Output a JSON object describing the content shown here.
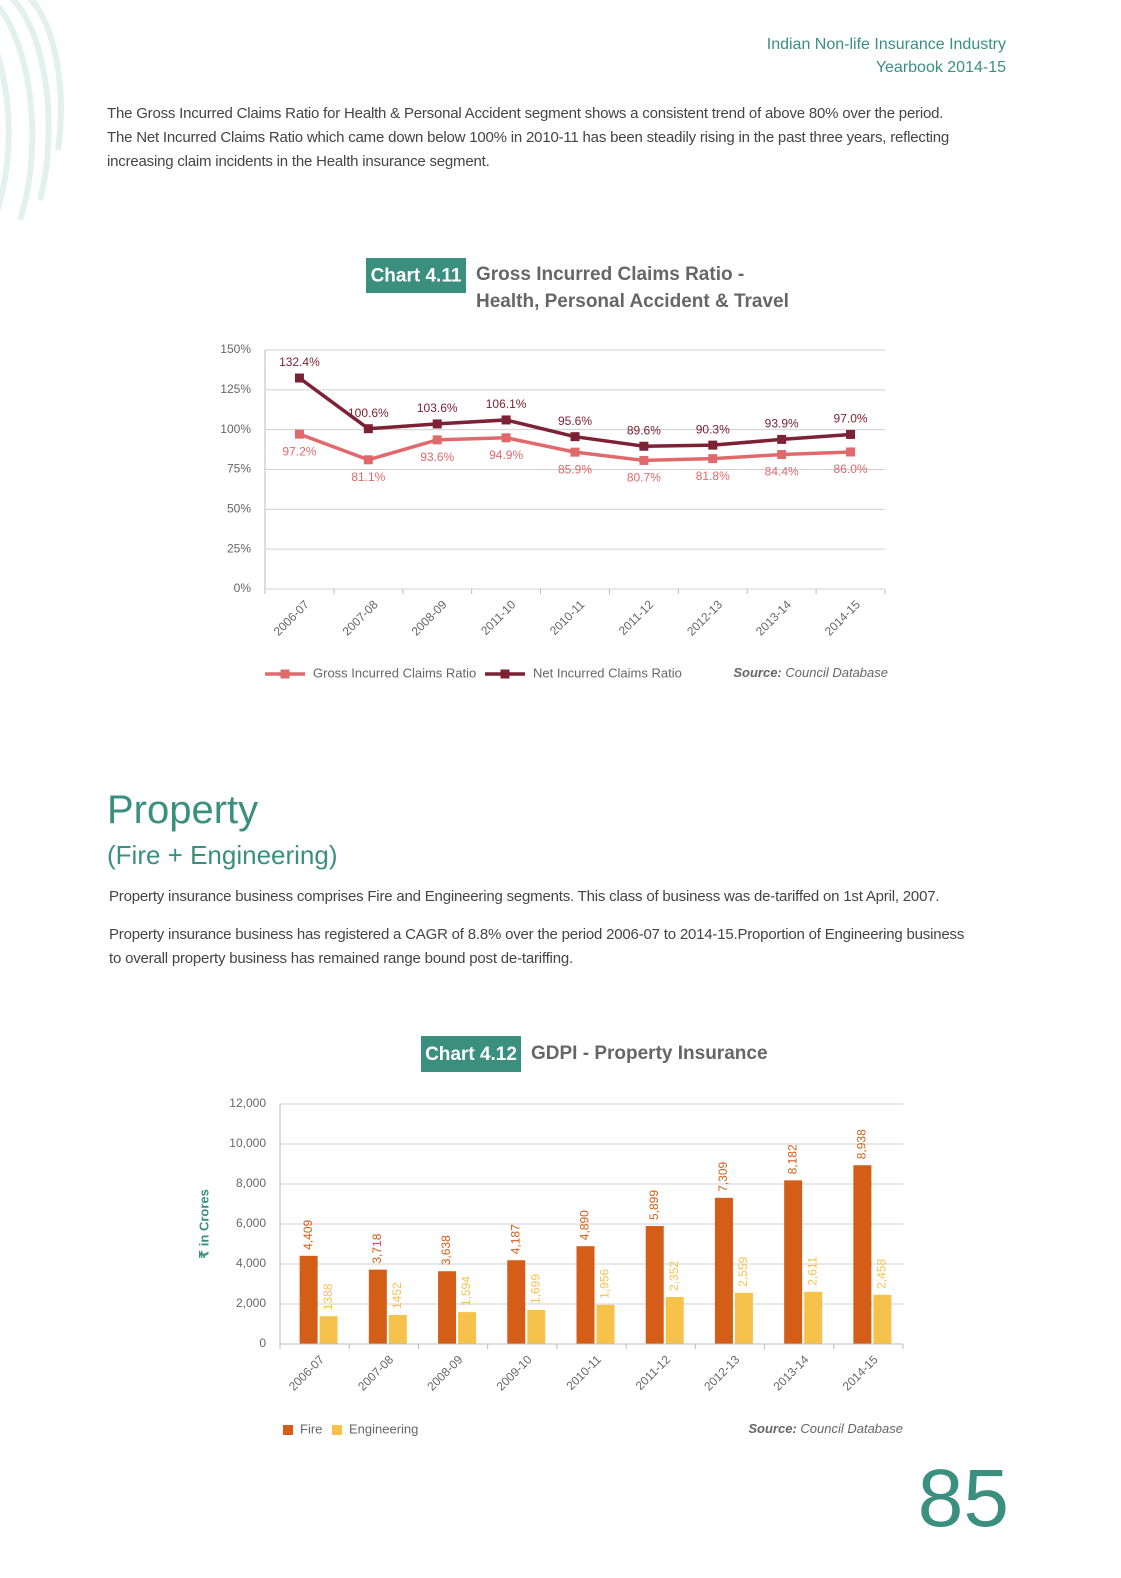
{
  "header": {
    "lines": [
      "Indian Non-life Insurance Industry",
      "Yearbook 2014-15"
    ]
  },
  "intro": {
    "lines": [
      "The Gross Incurred Claims Ratio for Health & Personal Accident segment shows a consistent trend of above 80% over the period.",
      "The Net Incurred Claims Ratio which came down below 100% in 2010-11 has been steadily rising in the past three years, reflecting",
      "increasing claim incidents in the Health insurance segment."
    ]
  },
  "chart_data": [
    {
      "type": "line",
      "label": "Chart 4.11",
      "title": [
        "Gross Incurred Claims Ratio -",
        "Health, Personal Accident & Travel"
      ],
      "categories": [
        "2006-07",
        "2007-08",
        "2008-09",
        "2011-10",
        "2010-11",
        "2011-12",
        "2012-13",
        "2013-14",
        "2014-15"
      ],
      "series": [
        {
          "name": "Gross Incurred Claims Ratio",
          "color": "#e0696b",
          "values": [
            97.2,
            81.1,
            93.6,
            94.9,
            85.9,
            80.7,
            81.8,
            84.4,
            86.0
          ],
          "value_labels": [
            "97.2%",
            "81.1%",
            "93.6%",
            "94.9%",
            "85.9%",
            "80.7%",
            "81.8%",
            "84.4%",
            "86.0%"
          ]
        },
        {
          "name": "Net Incurred Claims Ratio",
          "color": "#7d2134",
          "values": [
            132.4,
            100.6,
            103.6,
            106.1,
            95.6,
            89.6,
            90.3,
            93.9,
            97.0
          ],
          "value_labels": [
            "132.4%",
            "100.6%",
            "103.6%",
            "106.1%",
            "95.6%",
            "89.6%",
            "90.3%",
            "93.9%",
            "97.0%"
          ]
        }
      ],
      "ylim": [
        0,
        150
      ],
      "yticks": [
        {
          "value": 0,
          "label": "0%"
        },
        {
          "value": 25,
          "label": "25%"
        },
        {
          "value": 50,
          "label": "50%"
        },
        {
          "value": 75,
          "label": "75%"
        },
        {
          "value": 100,
          "label": "100%"
        },
        {
          "value": 125,
          "label": "125%"
        },
        {
          "value": 150,
          "label": "150%"
        }
      ],
      "grid": true,
      "source_label": "Source:",
      "source": "Council Database"
    },
    {
      "type": "bar",
      "label": "Chart 4.12",
      "title": [
        "GDPI - Property Insurance"
      ],
      "ylabel": "₹ in Crores",
      "categories": [
        "2006-07",
        "2007-08",
        "2008-09",
        "2009-10",
        "2010-11",
        "2011-12",
        "2012-13",
        "2013-14",
        "2014-15"
      ],
      "series": [
        {
          "name": "Fire",
          "color": "#d45d17",
          "values": [
            4409,
            3718,
            3638,
            4187,
            4890,
            5899,
            7309,
            8182,
            8938
          ],
          "value_labels": [
            "4,409",
            "3,718",
            "3,638",
            "4,187",
            "4,890",
            "5,899",
            "7,309",
            "8,182",
            "8,938"
          ]
        },
        {
          "name": "Engineering",
          "color": "#f6c24c",
          "values": [
            1388,
            1452,
            1594,
            1699,
            1956,
            2352,
            2559,
            2611,
            2458
          ],
          "value_labels": [
            "1388",
            "1452",
            "1,594",
            "1,699",
            "1,956",
            "2,352",
            "2,559",
            "2,611",
            "2,458"
          ]
        }
      ],
      "ylim": [
        0,
        12000
      ],
      "yticks": [
        0,
        {
          "value": 2000,
          "label": "2,000"
        },
        {
          "value": 4000,
          "label": "4,000"
        },
        {
          "value": 6000,
          "label": "6,000"
        },
        {
          "value": 8000,
          "label": "8,000"
        },
        {
          "value": 10000,
          "label": "10,000"
        },
        {
          "value": 12000,
          "label": "12,000"
        }
      ],
      "grid": true,
      "source_label": "Source:",
      "source": "Council Database"
    }
  ],
  "section": {
    "title": "Property",
    "subtitle": "(Fire + Engineering)",
    "paragraphs": [
      [
        "Property insurance business comprises Fire and Engineering segments. This class of business was de-tariffed on 1st April, 2007."
      ],
      [
        "Property insurance business has registered a CAGR of 8.8% over the period 2006-07 to 2014-15.Proportion of Engineering business",
        "to overall property business has remained range bound post de-tariffing."
      ]
    ]
  },
  "page_number": "85"
}
